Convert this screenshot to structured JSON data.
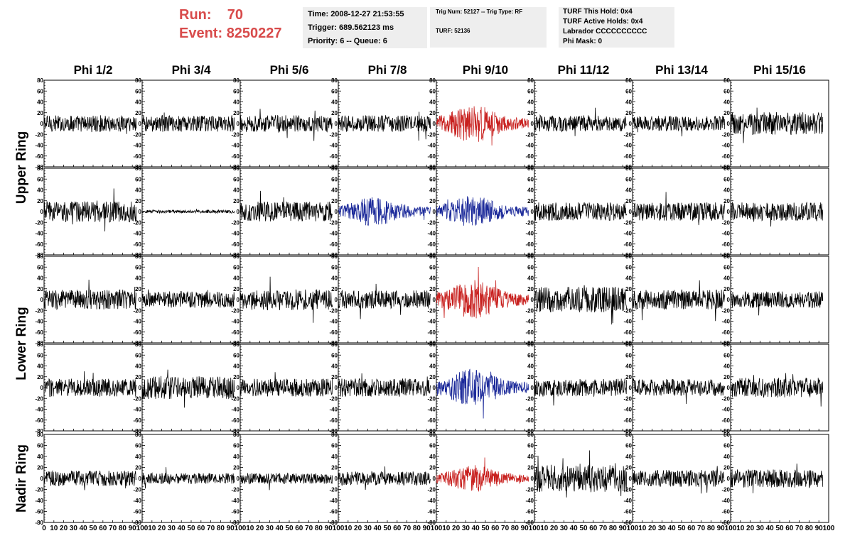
{
  "header": {
    "run_label": "Run:",
    "run_value": "70",
    "event_label": "Event:",
    "event_value": "8250227",
    "time": "Time: 2008-12-27 21:53:55",
    "trigger": "Trigger: 689.562123 ms",
    "priority": "Priority: 6 -- Queue: 6",
    "trig_num": "Trig Num: 52127 -- Trig Type: RF",
    "turf": "TURF: 52136",
    "turf_this_hold": "TURF This Hold: 0x4",
    "turf_active_holds": "TURF Active Holds: 0x4",
    "labrador": "Labrador CCCCCCCCCC",
    "phi_mask": "Phi Mask: 0"
  },
  "colors": {
    "header_text": "#d84b4b",
    "trace_default": "#000000",
    "trace_red": "#c8201e",
    "trace_blue": "#1c2a9a",
    "info_bg": "#eeeeee"
  },
  "chart_data": {
    "type": "line",
    "columns": [
      "Phi 1/2",
      "Phi 3/4",
      "Phi 5/6",
      "Phi 7/8",
      "Phi 9/10",
      "Phi 11/12",
      "Phi 13/14",
      "Phi 15/16"
    ],
    "rows": [
      {
        "label": "Upper Ring",
        "ring": "upper-1"
      },
      {
        "label": "Upper Ring",
        "ring": "upper-2"
      },
      {
        "label": "Lower Ring",
        "ring": "lower-1"
      },
      {
        "label": "Lower Ring",
        "ring": "lower-2"
      },
      {
        "label": "Nadir Ring",
        "ring": "nadir"
      }
    ],
    "row_labels": [
      {
        "text": "Upper Ring",
        "rows": [
          0,
          1
        ]
      },
      {
        "text": "Lower Ring",
        "rows": [
          2,
          3
        ]
      },
      {
        "text": "Nadir Ring",
        "rows": [
          4
        ]
      }
    ],
    "xlim": [
      0,
      100
    ],
    "ylim": [
      -80,
      80
    ],
    "x_ticks": [
      0,
      10,
      20,
      30,
      40,
      50,
      60,
      70,
      80,
      90,
      100
    ],
    "y_ticks": [
      80,
      60,
      40,
      20,
      0,
      -20,
      -40,
      -60,
      -80
    ],
    "x_range_of_data": [
      0,
      94
    ],
    "panels": [
      [
        {
          "amp": 11,
          "color": "black",
          "burst": false
        },
        {
          "amp": 11,
          "color": "black",
          "burst": false
        },
        {
          "amp": 11,
          "color": "black",
          "burst": false
        },
        {
          "amp": 11,
          "color": "black",
          "burst": false
        },
        {
          "amp": 20,
          "color": "red",
          "burst": true
        },
        {
          "amp": 11,
          "color": "black",
          "burst": false
        },
        {
          "amp": 10,
          "color": "black",
          "burst": false
        },
        {
          "amp": 15,
          "color": "black",
          "burst": false
        }
      ],
      [
        {
          "amp": 14,
          "color": "black",
          "burst": false
        },
        {
          "amp": 2,
          "color": "black",
          "burst": false
        },
        {
          "amp": 13,
          "color": "black",
          "burst": false
        },
        {
          "amp": 16,
          "color": "blue",
          "burst": true
        },
        {
          "amp": 17,
          "color": "blue",
          "burst": true
        },
        {
          "amp": 12,
          "color": "black",
          "burst": false
        },
        {
          "amp": 12,
          "color": "black",
          "burst": false
        },
        {
          "amp": 12,
          "color": "black",
          "burst": false
        }
      ],
      [
        {
          "amp": 13,
          "color": "black",
          "burst": false
        },
        {
          "amp": 11,
          "color": "black",
          "burst": false
        },
        {
          "amp": 14,
          "color": "black",
          "burst": false
        },
        {
          "amp": 12,
          "color": "black",
          "burst": false
        },
        {
          "amp": 21,
          "color": "red",
          "burst": true
        },
        {
          "amp": 17,
          "color": "black",
          "burst": false
        },
        {
          "amp": 13,
          "color": "black",
          "burst": false
        },
        {
          "amp": 11,
          "color": "black",
          "burst": false
        }
      ],
      [
        {
          "amp": 12,
          "color": "black",
          "burst": false
        },
        {
          "amp": 15,
          "color": "black",
          "burst": false
        },
        {
          "amp": 12,
          "color": "black",
          "burst": false
        },
        {
          "amp": 12,
          "color": "black",
          "burst": false
        },
        {
          "amp": 20,
          "color": "blue",
          "burst": true
        },
        {
          "amp": 12,
          "color": "black",
          "burst": false
        },
        {
          "amp": 11,
          "color": "black",
          "burst": false
        },
        {
          "amp": 13,
          "color": "black",
          "burst": false
        }
      ],
      [
        {
          "amp": 10,
          "color": "black",
          "burst": false
        },
        {
          "amp": 7,
          "color": "black",
          "burst": false
        },
        {
          "amp": 7,
          "color": "black",
          "burst": false
        },
        {
          "amp": 9,
          "color": "black",
          "burst": false
        },
        {
          "amp": 14,
          "color": "red",
          "burst": true
        },
        {
          "amp": 18,
          "color": "black",
          "burst": false
        },
        {
          "amp": 11,
          "color": "black",
          "burst": false
        },
        {
          "amp": 12,
          "color": "black",
          "burst": false
        }
      ]
    ]
  }
}
